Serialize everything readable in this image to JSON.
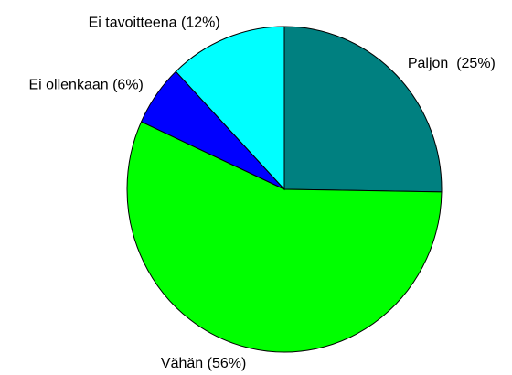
{
  "chart_data": {
    "type": "pie",
    "categories": [
      "Paljon  (25%)",
      "Vähän (56%)",
      "Ei ollenkaan (6%)",
      "Ei tavoitteena (12%)"
    ],
    "values": [
      25,
      56,
      6,
      12
    ],
    "colors": [
      "#008080",
      "#00ff00",
      "#0000ff",
      "#00ffff"
    ]
  }
}
